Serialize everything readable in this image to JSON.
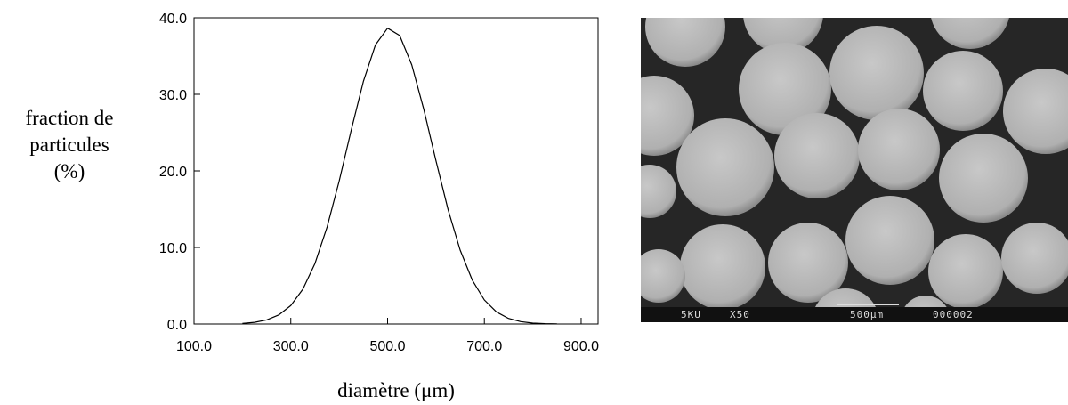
{
  "chart_data": {
    "type": "line",
    "xlabel": "diamètre (μm)",
    "ylabel": [
      "fraction de",
      "particules",
      "(%)"
    ],
    "x": [
      200,
      225,
      250,
      275,
      300,
      325,
      350,
      375,
      400,
      425,
      450,
      475,
      500,
      525,
      550,
      575,
      600,
      625,
      650,
      675,
      700,
      725,
      750,
      775,
      800,
      825,
      850
    ],
    "values": [
      0.08,
      0.22,
      0.53,
      1.18,
      2.41,
      4.55,
      7.91,
      12.67,
      18.68,
      25.36,
      31.69,
      36.47,
      38.64,
      37.69,
      33.85,
      28.0,
      21.32,
      14.95,
      9.65,
      5.74,
      3.14,
      1.58,
      0.73,
      0.31,
      0.12,
      0.04,
      0.01
    ],
    "color": "#000000",
    "xlim": [
      100,
      935
    ],
    "ylim": [
      0,
      40
    ],
    "xticks": [
      {
        "value": 100,
        "label": "100.0"
      },
      {
        "value": 300,
        "label": "300.0"
      },
      {
        "value": 500,
        "label": "500.0"
      },
      {
        "value": 700,
        "label": "700.0"
      },
      {
        "value": 900,
        "label": "900.0"
      }
    ],
    "yticks": [
      {
        "value": 0,
        "label": "0.0"
      },
      {
        "value": 10,
        "label": "10.0"
      },
      {
        "value": 20,
        "label": "20.0"
      },
      {
        "value": 30,
        "label": "30.0"
      },
      {
        "value": 40,
        "label": "40.0"
      }
    ]
  },
  "micrograph": {
    "labels": [
      "5KU",
      "X50",
      "500μm",
      "000002"
    ]
  }
}
